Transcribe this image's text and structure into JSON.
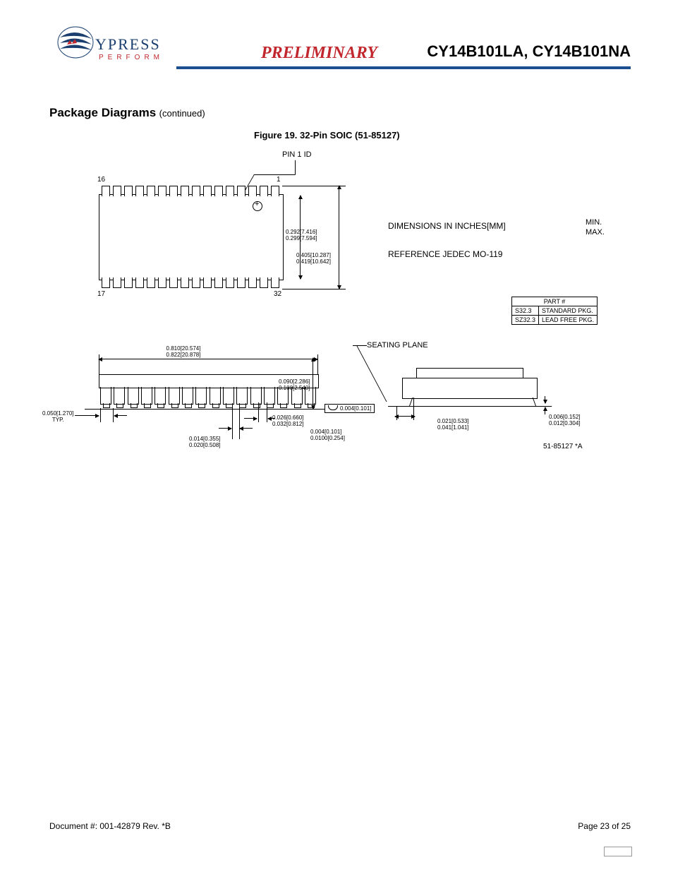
{
  "header": {
    "logo_text": "YPRESS",
    "logo_sub": "PERFORM",
    "preliminary": "PRELIMINARY",
    "parts": "CY14B101LA, CY14B101NA"
  },
  "section": {
    "title": "Package Diagrams",
    "continued": "(continued)"
  },
  "figure_caption": "Figure 19.  32-Pin SOIC (51-85127)",
  "notes": {
    "dimensions": "DIMENSIONS IN INCHES[MM]",
    "reference": "REFERENCE JEDEC MO-119",
    "min": "MIN.",
    "max": "MAX.",
    "pin1id": "PIN 1 ID",
    "seating_plane": "SEATING PLANE",
    "drawing_rev": "51-85127 *A"
  },
  "pin_labels": {
    "p16": "16",
    "p1": "1",
    "p17": "17",
    "p32": "32"
  },
  "dimensions": {
    "body_width": {
      "min": "0.292[7.416]",
      "max": "0.299[7.594]"
    },
    "overall_width": {
      "min": "0.405[10.287]",
      "max": "0.419[10.642]"
    },
    "body_length": {
      "min": "0.810[20.574]",
      "max": "0.822[20.878]"
    },
    "pitch": {
      "val": "0.050[1.270]",
      "note": "TYP."
    },
    "lead_tip_w": {
      "min": "0.014[0.355]",
      "max": "0.020[0.508]"
    },
    "lead_base_w": {
      "min": "0.026[0.660]",
      "max": "0.032[0.812]"
    },
    "standoff": {
      "min": "0.004[0.101]",
      "max": "0.0100[0.254]"
    },
    "body_thick": {
      "min": "0.090[2.286]",
      "max": "0.100[2.540]"
    },
    "coplanarity": "0.004[0.101]",
    "lead_height": {
      "min": "0.021[0.533]",
      "max": "0.041[1.041]"
    },
    "lead_thick": {
      "min": "0.006[0.152]",
      "max": "0.012[0.304]"
    }
  },
  "part_table": {
    "header": "PART #",
    "rows": [
      {
        "code": "S32.3",
        "desc": "STANDARD PKG."
      },
      {
        "code": "SZ32.3",
        "desc": "LEAD FREE PKG."
      }
    ]
  },
  "diagram": {
    "pin_count_per_side": 16,
    "colors": {
      "line": "#000000",
      "accent": "#1b4f8f",
      "red": "#c1272d",
      "logo_blue": "#1a3e6e"
    }
  },
  "footer": {
    "doc": "Document #: 001-42879  Rev. *B",
    "page": "Page 23 of 25"
  }
}
